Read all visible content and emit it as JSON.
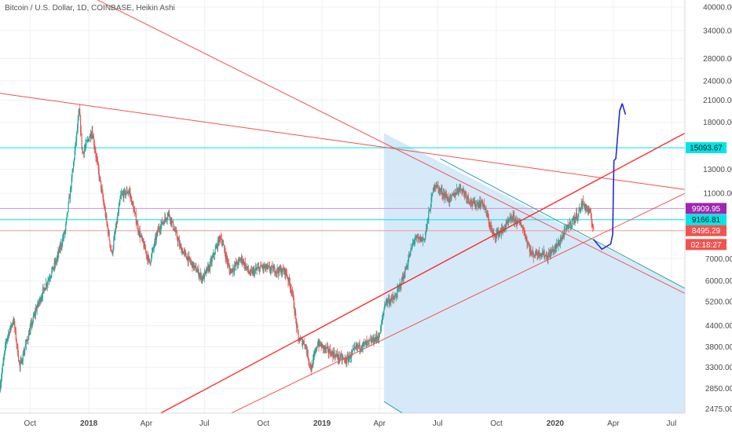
{
  "chart_data": {
    "type": "candlestick",
    "title": "Bitcoin / U.S. Dollar, 1D, COINBASE, Heikin Ashi",
    "y_scale": "log",
    "ylim": [
      2400,
      42000
    ],
    "y_ticks": [
      "40000.00",
      "34000.00",
      "28000.00",
      "24000.00",
      "21000.00",
      "18000.00",
      "15093.67",
      "13000.00",
      "11000.00",
      "9909.95",
      "9166.81",
      "8495.29",
      "7000.00",
      "6000.00",
      "5200.00",
      "4400.00",
      "3800.00",
      "3300.00",
      "2850.00",
      "2475.00"
    ],
    "y_tick_values": [
      40000,
      34000,
      28000,
      24000,
      21000,
      18000,
      13000,
      11000,
      7000,
      6000,
      5200,
      4400,
      3800,
      3300,
      2850,
      2475
    ],
    "x_ticks": [
      {
        "label": "Oct",
        "date": "2017-10-01",
        "bold": false
      },
      {
        "label": "2018",
        "date": "2018-01-01",
        "bold": true
      },
      {
        "label": "Apr",
        "date": "2018-04-01",
        "bold": false
      },
      {
        "label": "Jul",
        "date": "2018-07-01",
        "bold": false
      },
      {
        "label": "Oct",
        "date": "2018-10-01",
        "bold": false
      },
      {
        "label": "2019",
        "date": "2019-01-01",
        "bold": true
      },
      {
        "label": "Apr",
        "date": "2019-04-01",
        "bold": false
      },
      {
        "label": "Jul",
        "date": "2019-07-01",
        "bold": false
      },
      {
        "label": "Oct",
        "date": "2019-10-01",
        "bold": false
      },
      {
        "label": "2020",
        "date": "2020-01-01",
        "bold": true
      },
      {
        "label": "Apr",
        "date": "2020-04-01",
        "bold": false
      },
      {
        "label": "Jul",
        "date": "2020-07-01",
        "bold": false
      }
    ],
    "x_range": [
      "2017-08-15",
      "2020-07-22"
    ],
    "price_tags": [
      {
        "label": "15093.67",
        "value": 15093.67,
        "bg": "#00e5e5",
        "text": "dark"
      },
      {
        "label": "9909.95",
        "value": 9909.95,
        "bg": "#9c27b0",
        "text": "light"
      },
      {
        "label": "9166.81",
        "value": 9166.81,
        "bg": "#00e5e5",
        "text": "dark"
      },
      {
        "label": "8495.29",
        "value": 8495.29,
        "bg": "#ef5350",
        "text": "light"
      },
      {
        "label": "02:18:27",
        "value": 7720,
        "bg": "#ef5350",
        "text": "light"
      }
    ],
    "horizontal_lines": [
      {
        "value": 15093.67,
        "color": "#00e5e5"
      },
      {
        "value": 9909.95,
        "color": "#ce93d8"
      },
      {
        "value": 9166.81,
        "color": "#00e5e5"
      },
      {
        "value": 8495.29,
        "color": "#ef9a9a"
      }
    ],
    "trendlines": [
      {
        "color": "#ef5350",
        "width": 1,
        "points": [
          [
            "2017-08-15",
            22000
          ],
          [
            "2020-07-22",
            11300
          ]
        ]
      },
      {
        "color": "#ef5350",
        "width": 1,
        "points": [
          [
            "2018-01-15",
            42000
          ],
          [
            "2020-07-22",
            5500
          ]
        ]
      },
      {
        "color": "#ff2a2a",
        "width": 1.4,
        "points": [
          [
            "2018-04-20",
            2380
          ],
          [
            "2020-07-22",
            16700
          ]
        ]
      },
      {
        "color": "#ef5350",
        "width": 1,
        "points": [
          [
            "2018-08-08",
            2380
          ],
          [
            "2020-07-22",
            11000
          ]
        ]
      },
      {
        "color": "#26a69a",
        "width": 1,
        "points": [
          [
            "2019-07-05",
            14000
          ],
          [
            "2020-07-22",
            5700
          ]
        ]
      },
      {
        "color": "#26a69a",
        "width": 1,
        "points": [
          [
            "2019-04-08",
            2600
          ],
          [
            "2019-05-10",
            2380
          ]
        ]
      }
    ],
    "shaded_region": {
      "color": "#cfe5f7",
      "points": [
        [
          "2019-04-08",
          16700
        ],
        [
          "2020-07-22",
          5700
        ],
        [
          "2020-07-22",
          2380
        ],
        [
          "2019-05-10",
          2380
        ],
        [
          "2019-04-08",
          2600
        ]
      ]
    },
    "projection": {
      "color": "#2a2ad6",
      "points": [
        [
          "2020-03-01",
          8000
        ],
        [
          "2020-03-14",
          7470
        ],
        [
          "2020-03-28",
          7750
        ],
        [
          "2020-03-31",
          8300
        ],
        [
          "2020-04-01",
          11000
        ],
        [
          "2020-04-02",
          13800
        ],
        [
          "2020-04-05",
          14000
        ],
        [
          "2020-04-11",
          19500
        ],
        [
          "2020-04-15",
          20500
        ],
        [
          "2020-04-20",
          19000
        ]
      ]
    },
    "price_path": [
      [
        "2017-08-15",
        2900
      ],
      [
        "2017-08-25",
        4000
      ],
      [
        "2017-09-05",
        4600
      ],
      [
        "2017-09-15",
        3300
      ],
      [
        "2017-09-25",
        3900
      ],
      [
        "2017-10-10",
        4900
      ],
      [
        "2017-10-25",
        5800
      ],
      [
        "2017-11-10",
        6800
      ],
      [
        "2017-11-25",
        8500
      ],
      [
        "2017-12-05",
        12000
      ],
      [
        "2017-12-17",
        19500
      ],
      [
        "2017-12-22",
        14500
      ],
      [
        "2018-01-06",
        17000
      ],
      [
        "2018-01-20",
        11500
      ],
      [
        "2018-02-06",
        7200
      ],
      [
        "2018-02-20",
        10800
      ],
      [
        "2018-03-05",
        11200
      ],
      [
        "2018-03-20",
        8500
      ],
      [
        "2018-04-06",
        6800
      ],
      [
        "2018-04-20",
        8600
      ],
      [
        "2018-05-06",
        9600
      ],
      [
        "2018-05-25",
        7500
      ],
      [
        "2018-06-10",
        6800
      ],
      [
        "2018-06-28",
        6100
      ],
      [
        "2018-07-10",
        6700
      ],
      [
        "2018-07-26",
        8200
      ],
      [
        "2018-08-10",
        6400
      ],
      [
        "2018-08-28",
        7000
      ],
      [
        "2018-09-10",
        6300
      ],
      [
        "2018-09-28",
        6600
      ],
      [
        "2018-10-15",
        6500
      ],
      [
        "2018-11-05",
        6400
      ],
      [
        "2018-11-15",
        5600
      ],
      [
        "2018-11-25",
        4000
      ],
      [
        "2018-12-05",
        3900
      ],
      [
        "2018-12-15",
        3250
      ],
      [
        "2018-12-25",
        3900
      ],
      [
        "2019-01-10",
        3700
      ],
      [
        "2019-01-25",
        3550
      ],
      [
        "2019-02-08",
        3450
      ],
      [
        "2019-02-25",
        3800
      ],
      [
        "2019-03-15",
        3900
      ],
      [
        "2019-04-01",
        4100
      ],
      [
        "2019-04-10",
        5200
      ],
      [
        "2019-04-25",
        5300
      ],
      [
        "2019-05-10",
        6300
      ],
      [
        "2019-05-25",
        8000
      ],
      [
        "2019-06-10",
        8000
      ],
      [
        "2019-06-26",
        11800
      ],
      [
        "2019-07-05",
        11200
      ],
      [
        "2019-07-20",
        10500
      ],
      [
        "2019-08-05",
        11500
      ],
      [
        "2019-08-25",
        10200
      ],
      [
        "2019-09-10",
        10300
      ],
      [
        "2019-09-26",
        8200
      ],
      [
        "2019-10-10",
        8500
      ],
      [
        "2019-10-26",
        9300
      ],
      [
        "2019-11-10",
        8800
      ],
      [
        "2019-11-25",
        7200
      ],
      [
        "2019-12-10",
        7300
      ],
      [
        "2019-12-20",
        7100
      ],
      [
        "2020-01-05",
        7700
      ],
      [
        "2020-01-20",
        8700
      ],
      [
        "2020-02-05",
        9500
      ],
      [
        "2020-02-13",
        10300
      ],
      [
        "2020-02-24",
        9600
      ],
      [
        "2020-03-01",
        8600
      ]
    ]
  }
}
